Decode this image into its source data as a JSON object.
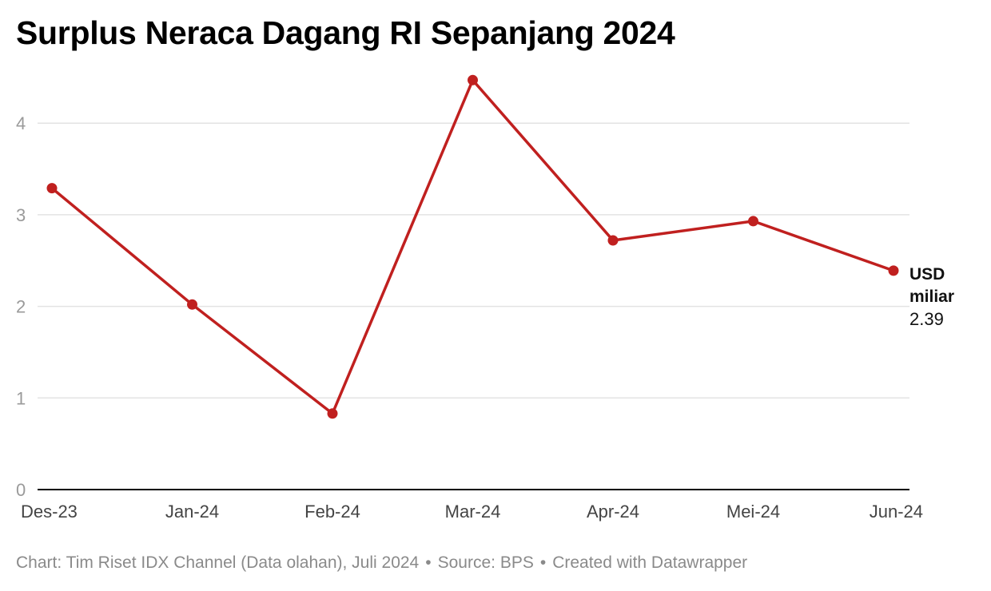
{
  "title": "Surplus Neraca Dagang RI Sepanjang 2024",
  "footer": {
    "chart_credit": "Chart: Tim Riset IDX Channel (Data olahan), Juli 2024",
    "source": "Source: BPS",
    "created_with": "Created with Datawrapper",
    "separator": "•"
  },
  "colors": {
    "line": "#c0201f",
    "grid": "#e3e3e3",
    "baseline": "#000000"
  },
  "chart_data": {
    "type": "line",
    "categories": [
      "Des-23",
      "Jan-24",
      "Feb-24",
      "Mar-24",
      "Apr-24",
      "Mei-24",
      "Jun-24"
    ],
    "series": [
      {
        "values": [
          3.29,
          2.02,
          0.83,
          4.47,
          2.72,
          2.93,
          2.39
        ]
      }
    ],
    "ylim": [
      0,
      4.5
    ],
    "yticks": [
      0,
      1,
      2,
      3,
      4
    ],
    "grid": true,
    "end_label": {
      "unit_line1": "USD",
      "unit_line2": "miliar",
      "value": "2.39"
    }
  }
}
